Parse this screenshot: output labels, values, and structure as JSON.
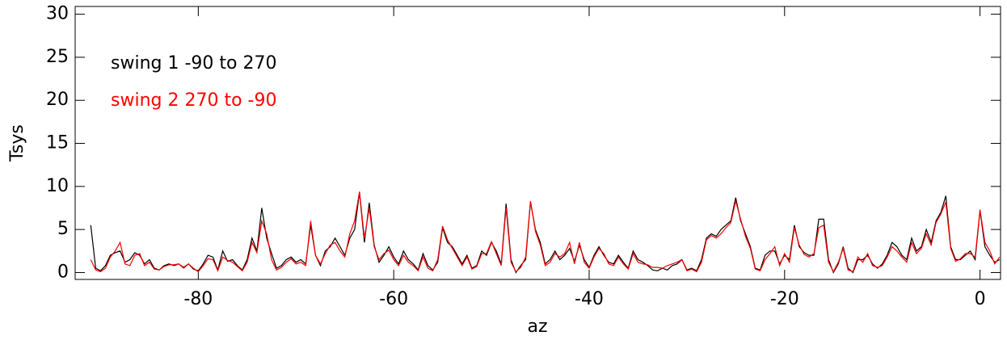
{
  "chart_data": {
    "type": "line",
    "xlabel": "az",
    "ylabel": "Tsys",
    "xlim": [
      -92.6,
      2.1
    ],
    "xticks": [
      -80,
      -60,
      -40,
      -20,
      0
    ],
    "ylim": [
      -0.8,
      30.9
    ],
    "yticks": [
      0,
      5,
      10,
      15,
      20,
      25,
      30
    ],
    "legend": "upper left",
    "x": [
      -91,
      -90.5,
      -90,
      -89.5,
      -89,
      -88.5,
      -88,
      -87.5,
      -87,
      -86.5,
      -86,
      -85.5,
      -85,
      -84.5,
      -84,
      -83.5,
      -83,
      -82.5,
      -82,
      -81.5,
      -81,
      -80.5,
      -80,
      -79.5,
      -79,
      -78.5,
      -78,
      -77.5,
      -77,
      -76.5,
      -76,
      -75.5,
      -75,
      -74.5,
      -74,
      -73.5,
      -73,
      -72.5,
      -72,
      -71.5,
      -71,
      -70.5,
      -70,
      -69.5,
      -69,
      -68.5,
      -68,
      -67.5,
      -67,
      -66.5,
      -66,
      -65.5,
      -65,
      -64.5,
      -64,
      -63.5,
      -63,
      -62.5,
      -62,
      -61.5,
      -61,
      -60.5,
      -60,
      -59.5,
      -59,
      -58.5,
      -58,
      -57.5,
      -57,
      -56.5,
      -56,
      -55.5,
      -55,
      -54.5,
      -54,
      -53.5,
      -53,
      -52.5,
      -52,
      -51.5,
      -51,
      -50.5,
      -50,
      -49.5,
      -49,
      -48.5,
      -48,
      -47.5,
      -47,
      -46.5,
      -46,
      -45.5,
      -45,
      -44.5,
      -44,
      -43.5,
      -43,
      -42.5,
      -42,
      -41.5,
      -41,
      -40.5,
      -40,
      -39.5,
      -39,
      -38.5,
      -38,
      -37.5,
      -37,
      -36.5,
      -36,
      -35.5,
      -35,
      -34.5,
      -34,
      -33.5,
      -33,
      -32.5,
      -32,
      -31.5,
      -31,
      -30.5,
      -30,
      -29.5,
      -29,
      -28.5,
      -28,
      -27.5,
      -27,
      -26.5,
      -26,
      -25.5,
      -25,
      -24.5,
      -24,
      -23.5,
      -23,
      -22.5,
      -22,
      -21.5,
      -21,
      -20.5,
      -20,
      -19.5,
      -19,
      -18.5,
      -18,
      -17.5,
      -17,
      -16.5,
      -16,
      -15.5,
      -15,
      -14.5,
      -14,
      -13.5,
      -13,
      -12.5,
      -12,
      -11.5,
      -11,
      -10.5,
      -10,
      -9.5,
      -9,
      -8.5,
      -8,
      -7.5,
      -7,
      -6.5,
      -6,
      -5.5,
      -5,
      -4.5,
      -4,
      -3.5,
      -3,
      -2.5,
      -2,
      -1.5,
      -1,
      -0.5,
      0,
      0.5,
      1,
      1.5,
      2
    ],
    "series": [
      {
        "name": "swing 1 -90 to 270",
        "color": "#000000",
        "values": [
          5.5,
          0.5,
          0.2,
          0.8,
          2,
          2.3,
          2.5,
          1.2,
          1.5,
          2.3,
          2,
          1,
          1.5,
          0.5,
          0.3,
          0.8,
          1,
          0.8,
          1,
          0.6,
          1,
          0.4,
          0.2,
          1,
          2,
          1.8,
          0.3,
          2.5,
          1.3,
          1.5,
          0.8,
          0.3,
          1.5,
          4,
          2.5,
          7.5,
          4,
          2.2,
          0.5,
          0.8,
          1.5,
          1.8,
          1.2,
          1.5,
          1,
          5.5,
          2,
          0.8,
          2.5,
          3,
          4,
          3,
          2,
          4,
          5,
          9.3,
          3.5,
          8.1,
          3.2,
          1.2,
          2,
          3,
          1.8,
          1,
          2.5,
          1.5,
          1,
          0.3,
          2.2,
          0.8,
          0.3,
          1.2,
          5.2,
          3.5,
          3,
          2,
          1,
          2,
          0.5,
          0.8,
          2.5,
          2,
          3.5,
          2.5,
          1,
          8,
          1.5,
          0,
          0.8,
          1.5,
          8.2,
          5,
          3.5,
          1,
          1.5,
          2.5,
          1.5,
          2,
          2.8,
          1.3,
          3.2,
          1.5,
          0.6,
          2,
          3,
          2,
          1.2,
          1,
          2,
          1.2,
          0.5,
          2.5,
          1.5,
          1.2,
          0.8,
          0.3,
          0.2,
          0.5,
          0.3,
          0.8,
          1,
          1.5,
          0.3,
          0.5,
          0.2,
          1.5,
          4,
          4.5,
          4.2,
          5,
          5.5,
          6,
          8.7,
          6,
          4.5,
          3,
          0.5,
          0.3,
          2,
          2.5,
          2.5,
          1,
          2,
          1.5,
          5.5,
          3,
          2.3,
          2,
          2,
          6.2,
          6.2,
          1.5,
          0,
          1,
          3,
          0.5,
          0,
          1.5,
          1.5,
          2,
          1,
          0.5,
          1,
          2,
          3.5,
          3,
          2,
          1.5,
          4,
          2.5,
          3,
          5,
          3.5,
          6,
          7,
          8.9,
          3,
          1.5,
          1.5,
          2,
          2.5,
          1.5,
          7.2,
          3,
          2,
          1.2,
          1.5
        ]
      },
      {
        "name": "swing 2 270 to -90",
        "color": "#ff0000",
        "values": [
          1.5,
          0.3,
          0.1,
          0.5,
          1.8,
          2.5,
          3.5,
          1,
          0.8,
          2,
          2.2,
          0.8,
          1.2,
          0.4,
          0.3,
          0.7,
          0.9,
          0.9,
          1,
          0.5,
          1,
          0.5,
          0.1,
          0.8,
          1.6,
          1.5,
          0.2,
          1.8,
          1.4,
          1.2,
          0.7,
          0.2,
          1.2,
          3.5,
          2.3,
          6,
          4.5,
          1.5,
          0.3,
          0.6,
          1.2,
          1.6,
          1,
          1.2,
          0.8,
          6,
          2,
          1,
          2.2,
          3.2,
          3.5,
          2.5,
          1.8,
          4.5,
          6,
          9.4,
          4,
          7.5,
          3,
          1.5,
          2.2,
          2.6,
          1.5,
          0.8,
          2,
          1.2,
          0.8,
          0.2,
          1.8,
          0.5,
          0.2,
          1.5,
          5.4,
          3.8,
          2.8,
          1.8,
          0.8,
          1.8,
          0.4,
          0.7,
          2.2,
          2.2,
          3.6,
          2.2,
          0.8,
          7.5,
          1.2,
          0.1,
          0.6,
          1.8,
          8.3,
          4.8,
          3.2,
          0.8,
          1.2,
          2.2,
          1.8,
          2.2,
          3.5,
          1,
          3.5,
          1.2,
          0.5,
          1.8,
          2.8,
          2.2,
          1,
          0.8,
          1.8,
          1,
          0.4,
          2.2,
          1.2,
          1,
          0.9,
          0.6,
          0.6,
          0.5,
          0.8,
          1,
          1.2,
          1.5,
          0.2,
          0.4,
          0.1,
          1.2,
          3.8,
          4.3,
          4,
          4.5,
          5.2,
          5.8,
          8.3,
          6.2,
          4.2,
          2.8,
          0.4,
          0.2,
          1.5,
          2.2,
          3,
          0.8,
          2.2,
          1.2,
          5.2,
          3.2,
          2.1,
          1.8,
          2.2,
          5.2,
          5.5,
          1.2,
          0.1,
          1.2,
          2.8,
          0.3,
          0.1,
          1.8,
          1.2,
          2.2,
          0.8,
          0.6,
          0.8,
          1.8,
          3,
          2.5,
          1.8,
          1.2,
          3.5,
          2.2,
          2.8,
          4.5,
          3.2,
          5.8,
          6.8,
          8.2,
          2.8,
          1.3,
          1.6,
          2.2,
          2.2,
          1.8,
          7.3,
          3.5,
          2.5,
          1,
          1.8
        ]
      }
    ]
  }
}
